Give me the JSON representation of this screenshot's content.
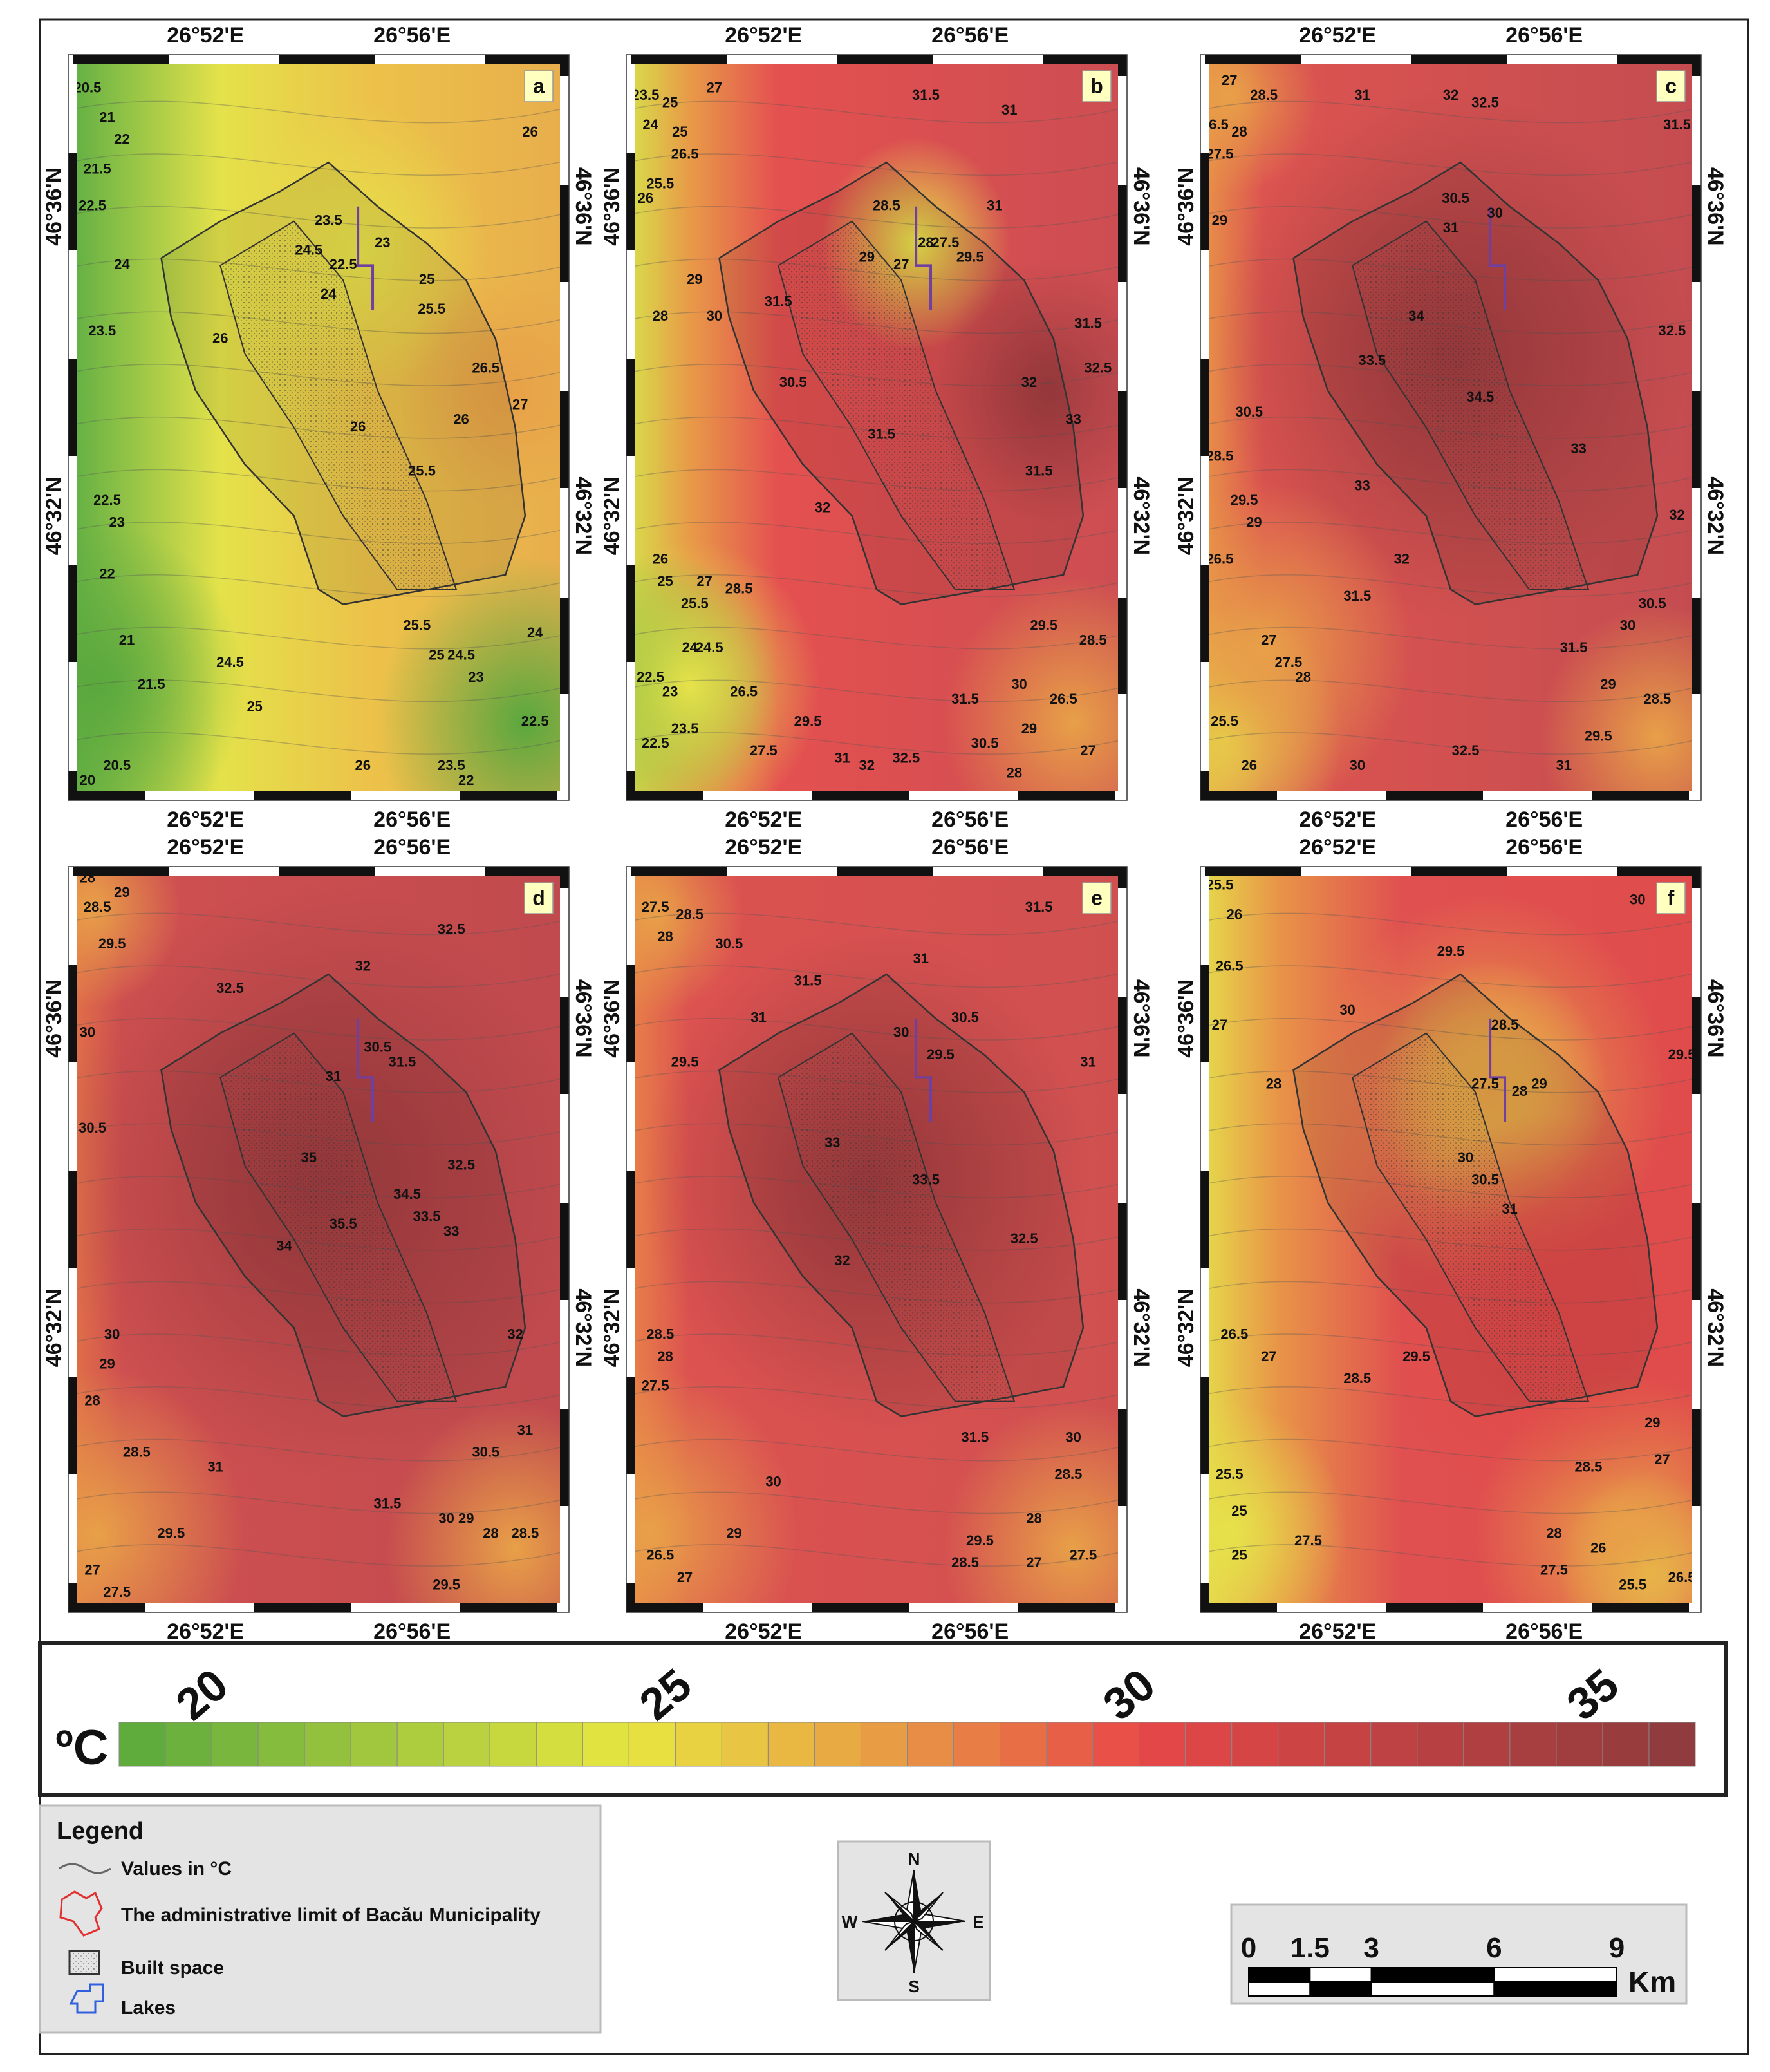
{
  "graticule": {
    "lon": [
      "26°52'E",
      "26°56'E"
    ],
    "lat": [
      "46°36'N",
      "46°32'N"
    ]
  },
  "panels": [
    {
      "label": "a",
      "contour_labels": [
        20.5,
        21,
        22,
        21.5,
        22.5,
        24,
        23.5,
        23.5,
        23,
        22.5,
        24.5,
        24,
        25,
        25.5,
        26,
        26,
        26.5,
        27,
        26,
        25.5,
        22.5,
        23,
        22,
        21,
        21.5,
        24.5,
        25,
        26,
        20.5,
        20,
        25.5,
        25,
        24.5,
        23,
        23.5,
        22,
        22.5,
        24,
        26
      ]
    },
    {
      "label": "b",
      "contour_labels": [
        23.5,
        24,
        25,
        27,
        25,
        26.5,
        25.5,
        26,
        29,
        28,
        30,
        31.5,
        28.5,
        29,
        27,
        28,
        27.5,
        29.5,
        31,
        31.5,
        31,
        30.5,
        31.5,
        32,
        33,
        32.5,
        31.5,
        31.5,
        32,
        26,
        25,
        27,
        28.5,
        25.5,
        24,
        24.5,
        22.5,
        23,
        23.5,
        22.5,
        26.5,
        27.5,
        29.5,
        31,
        32,
        32.5,
        31.5,
        30.5,
        30,
        29,
        28,
        26.5,
        27,
        29.5,
        28.5
      ]
    },
    {
      "label": "c",
      "contour_labels": [
        27,
        28.5,
        26.5,
        28,
        27.5,
        31,
        32,
        32.5,
        31.5,
        29,
        30.5,
        31,
        30,
        34,
        33.5,
        34.5,
        33,
        32.5,
        30.5,
        28.5,
        29.5,
        29,
        33,
        32,
        31.5,
        32,
        26.5,
        27,
        27.5,
        28,
        25.5,
        26,
        30,
        32.5,
        31.5,
        31,
        29.5,
        29,
        30.5,
        30,
        28.5
      ]
    },
    {
      "label": "d",
      "contour_labels": [
        28,
        28.5,
        29,
        29.5,
        30,
        32.5,
        32,
        32.5,
        30.5,
        31.5,
        31,
        30.5,
        35,
        35.5,
        34.5,
        33.5,
        33,
        32.5,
        34,
        30,
        29,
        28,
        32,
        28.5,
        31,
        29.5,
        27,
        27.5,
        31.5,
        30,
        29,
        28,
        28.5,
        29.5,
        30.5,
        31
      ]
    },
    {
      "label": "e",
      "contour_labels": [
        27.5,
        28.5,
        28,
        30.5,
        31.5,
        31,
        31,
        30,
        29.5,
        30.5,
        31.5,
        31,
        29.5,
        33,
        33.5,
        32.5,
        32,
        28.5,
        28,
        27.5,
        30,
        29,
        26.5,
        27,
        31.5,
        30,
        28.5,
        28,
        29.5,
        28.5,
        27,
        27.5
      ]
    },
    {
      "label": "f",
      "contour_labels": [
        25.5,
        26,
        26.5,
        27,
        30,
        29.5,
        30,
        28.5,
        27.5,
        28,
        29,
        29.5,
        28,
        30,
        30.5,
        31,
        26.5,
        27,
        28.5,
        29.5,
        29,
        25.5,
        25,
        27,
        28.5,
        28,
        27.5,
        26,
        25.5,
        26.5,
        25,
        27.5
      ]
    }
  ],
  "colorbar": {
    "unit": "ºC",
    "range": [
      19,
      36
    ],
    "step": 0.5,
    "ticks": [
      20,
      25,
      30,
      35
    ],
    "color_stops": [
      {
        "value": 19,
        "color": "#58a83c"
      },
      {
        "value": 24.5,
        "color": "#e8e640"
      },
      {
        "value": 27,
        "color": "#e8a444"
      },
      {
        "value": 30,
        "color": "#e84848"
      },
      {
        "value": 36,
        "color": "#8c3a3c"
      }
    ]
  },
  "legend": {
    "title": "Legend",
    "items": [
      "Values in °C",
      "The administrative limit of Bacău Municipality",
      "Built space",
      "Lakes"
    ]
  },
  "compass": {
    "n": "N",
    "s": "S",
    "e": "E",
    "w": "W"
  },
  "scale_bar": {
    "ticks": [
      0,
      1.5,
      3,
      6,
      9
    ],
    "unit": "Km"
  }
}
